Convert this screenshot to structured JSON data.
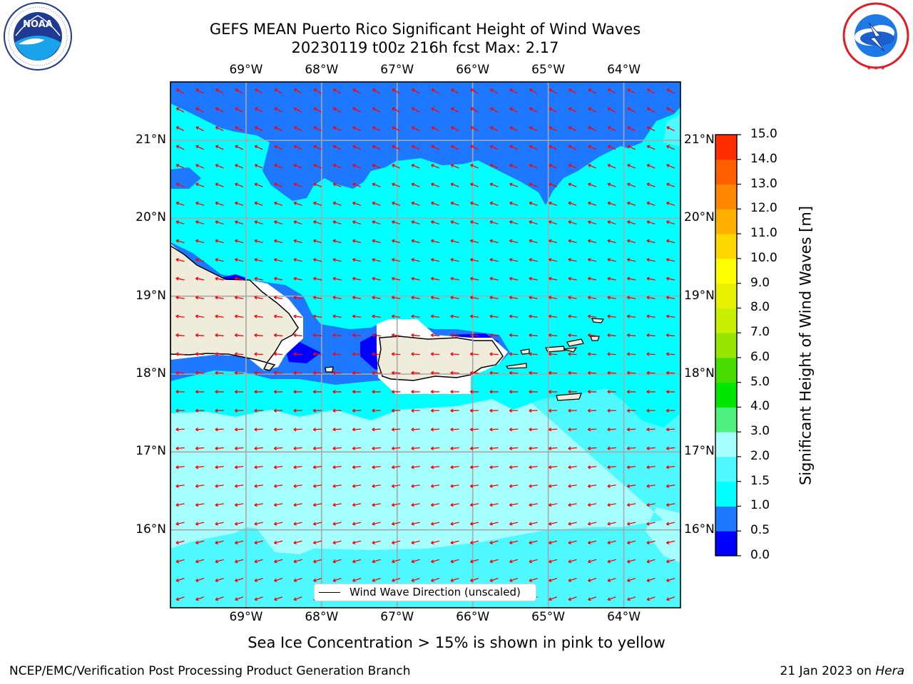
{
  "title": {
    "line1": "GEFS MEAN Puerto Rico Significant Height of Wind Waves",
    "line2": "20230119 t00z 216h fcst   Max: 2.17"
  },
  "logos": {
    "left": {
      "text": "NOAA",
      "icon": "noaa-logo-icon",
      "ring_text": "NATIONAL OCEANIC AND ATMOSPHERIC ADMINISTRATION · U.S. DEPARTMENT OF COMMERCE"
    },
    "right": {
      "icon": "nws-logo-icon",
      "ring_text": "NATIONAL WEATHER SERVICE"
    }
  },
  "map": {
    "lon_range": [
      -70.0,
      -63.25
    ],
    "lat_range": [
      15.0,
      21.75
    ],
    "lon_ticks": [
      "69°W",
      "68°W",
      "67°W",
      "66°W",
      "65°W",
      "64°W"
    ],
    "lat_ticks": [
      "21°N",
      "20°N",
      "19°N",
      "18°N",
      "17°N",
      "16°N"
    ],
    "gridlines": true,
    "vector_color": "#ff0000",
    "vector_field": "Wind Wave Direction (unscaled)",
    "land_color": "#efecdc",
    "legend_label": "Wind Wave Direction (unscaled)",
    "legend_position": "bottom-center"
  },
  "colorbar": {
    "label": "Significant Height of Wind Waves [m]",
    "ticks": [
      "15.0",
      "14.0",
      "13.0",
      "12.0",
      "11.0",
      "10.0",
      "9.0",
      "8.0",
      "7.0",
      "6.0",
      "5.0",
      "4.0",
      "3.0",
      "2.0",
      "1.5",
      "1.0",
      "0.5",
      "0.0"
    ],
    "levels": [
      0.0,
      0.5,
      1.0,
      1.5,
      2.0,
      3.0,
      4.0,
      5.0,
      6.0,
      7.0,
      8.0,
      9.0,
      10.0,
      11.0,
      12.0,
      13.0,
      14.0,
      15.0
    ],
    "colors": [
      "#0000ff",
      "#1e78ff",
      "#00ffff",
      "#4df8ff",
      "#a5ffff",
      "#50f080",
      "#00e600",
      "#48dc00",
      "#96e600",
      "#c8f000",
      "#e6f000",
      "#ffff00",
      "#ffd700",
      "#ffaf00",
      "#ff8700",
      "#ff5f00",
      "#ff2d00"
    ]
  },
  "note": "Sea Ice Concentration > 15% is shown in pink to yellow",
  "footer": {
    "left": "NCEP/EMC/Verification Post Processing Product Generation Branch",
    "right_prefix": "21 Jan 2023 on ",
    "right_host": "Hera"
  }
}
